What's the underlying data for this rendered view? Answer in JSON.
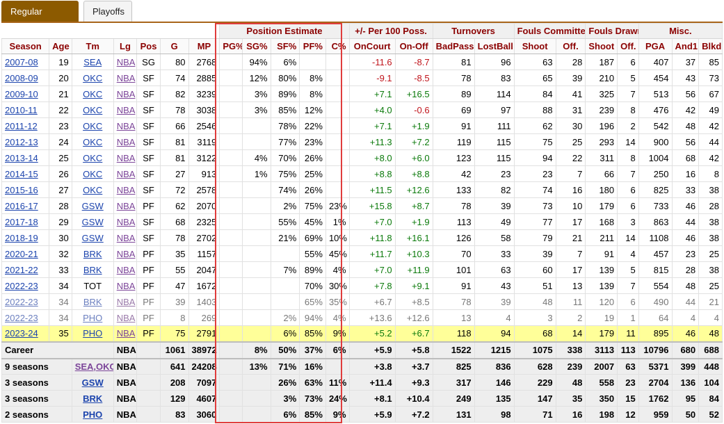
{
  "tabs": {
    "regular_season": "Regular Season",
    "playoffs": "Playoffs"
  },
  "groups": {
    "position_estimate": "Position Estimate",
    "plus_minus": "+/- Per 100 Poss.",
    "turnovers": "Turnovers",
    "fouls_committed": "Fouls Committed",
    "fouls_drawn": "Fouls Drawn",
    "misc": "Misc."
  },
  "columns": [
    "Season",
    "Age",
    "Tm",
    "Lg",
    "Pos",
    "G",
    "MP",
    "PG%",
    "SG%",
    "SF%",
    "PF%",
    "C%",
    "OnCourt",
    "On-Off",
    "BadPass",
    "LostBall",
    "Shoot",
    "Off.",
    "Shoot",
    "Off.",
    "PGA",
    "And1",
    "Blkd"
  ],
  "rows": [
    {
      "cells": [
        "2007-08",
        "19",
        "SEA",
        "NBA",
        "SG",
        "80",
        "2768",
        "",
        "94%",
        "6%",
        "",
        "",
        "-11.6",
        "-8.7",
        "81",
        "96",
        "63",
        "28",
        "187",
        "6",
        "407",
        "37",
        "85"
      ]
    },
    {
      "cells": [
        "2008-09",
        "20",
        "OKC",
        "NBA",
        "SF",
        "74",
        "2885",
        "",
        "12%",
        "80%",
        "8%",
        "",
        "-9.1",
        "-8.5",
        "78",
        "83",
        "65",
        "39",
        "210",
        "5",
        "454",
        "43",
        "73"
      ]
    },
    {
      "cells": [
        "2009-10",
        "21",
        "OKC",
        "NBA",
        "SF",
        "82",
        "3239",
        "",
        "3%",
        "89%",
        "8%",
        "",
        "+7.1",
        "+16.5",
        "89",
        "114",
        "84",
        "41",
        "325",
        "7",
        "513",
        "56",
        "67"
      ]
    },
    {
      "cells": [
        "2010-11",
        "22",
        "OKC",
        "NBA",
        "SF",
        "78",
        "3038",
        "",
        "3%",
        "85%",
        "12%",
        "",
        "+4.0",
        "-0.6",
        "69",
        "97",
        "88",
        "31",
        "239",
        "8",
        "476",
        "42",
        "49"
      ]
    },
    {
      "cells": [
        "2011-12",
        "23",
        "OKC",
        "NBA",
        "SF",
        "66",
        "2546",
        "",
        "",
        "78%",
        "22%",
        "",
        "+7.1",
        "+1.9",
        "91",
        "111",
        "62",
        "30",
        "196",
        "2",
        "542",
        "48",
        "42"
      ]
    },
    {
      "cells": [
        "2012-13",
        "24",
        "OKC",
        "NBA",
        "SF",
        "81",
        "3119",
        "",
        "",
        "77%",
        "23%",
        "",
        "+11.3",
        "+7.2",
        "119",
        "115",
        "75",
        "25",
        "293",
        "14",
        "900",
        "56",
        "44"
      ]
    },
    {
      "cells": [
        "2013-14",
        "25",
        "OKC",
        "NBA",
        "SF",
        "81",
        "3122",
        "",
        "4%",
        "70%",
        "26%",
        "",
        "+8.0",
        "+6.0",
        "123",
        "115",
        "94",
        "22",
        "311",
        "8",
        "1004",
        "68",
        "42"
      ]
    },
    {
      "cells": [
        "2014-15",
        "26",
        "OKC",
        "NBA",
        "SF",
        "27",
        "913",
        "",
        "1%",
        "75%",
        "25%",
        "",
        "+8.8",
        "+8.8",
        "42",
        "23",
        "23",
        "7",
        "66",
        "7",
        "250",
        "16",
        "8"
      ]
    },
    {
      "cells": [
        "2015-16",
        "27",
        "OKC",
        "NBA",
        "SF",
        "72",
        "2578",
        "",
        "",
        "74%",
        "26%",
        "",
        "+11.5",
        "+12.6",
        "133",
        "82",
        "74",
        "16",
        "180",
        "6",
        "825",
        "33",
        "38"
      ]
    },
    {
      "cells": [
        "2016-17",
        "28",
        "GSW",
        "NBA",
        "PF",
        "62",
        "2070",
        "",
        "",
        "2%",
        "75%",
        "23%",
        "+15.8",
        "+8.7",
        "78",
        "39",
        "73",
        "10",
        "179",
        "6",
        "733",
        "46",
        "28"
      ]
    },
    {
      "cells": [
        "2017-18",
        "29",
        "GSW",
        "NBA",
        "SF",
        "68",
        "2325",
        "",
        "",
        "55%",
        "45%",
        "1%",
        "+7.0",
        "+1.9",
        "113",
        "49",
        "77",
        "17",
        "168",
        "3",
        "863",
        "44",
        "38"
      ]
    },
    {
      "cells": [
        "2018-19",
        "30",
        "GSW",
        "NBA",
        "SF",
        "78",
        "2702",
        "",
        "",
        "21%",
        "69%",
        "10%",
        "+11.8",
        "+16.1",
        "126",
        "58",
        "79",
        "21",
        "211",
        "14",
        "1108",
        "46",
        "38"
      ]
    },
    {
      "cells": [
        "2020-21",
        "32",
        "BRK",
        "NBA",
        "PF",
        "35",
        "1157",
        "",
        "",
        "",
        "55%",
        "45%",
        "+11.7",
        "+10.3",
        "70",
        "33",
        "39",
        "7",
        "91",
        "4",
        "457",
        "23",
        "25"
      ]
    },
    {
      "cells": [
        "2021-22",
        "33",
        "BRK",
        "NBA",
        "PF",
        "55",
        "2047",
        "",
        "",
        "7%",
        "89%",
        "4%",
        "+7.0",
        "+11.9",
        "101",
        "63",
        "60",
        "17",
        "139",
        "5",
        "815",
        "28",
        "38"
      ]
    },
    {
      "cells": [
        "2022-23",
        "34",
        "TOT",
        "NBA",
        "PF",
        "47",
        "1672",
        "",
        "",
        "",
        "70%",
        "30%",
        "+7.8",
        "+9.1",
        "91",
        "43",
        "51",
        "13",
        "139",
        "7",
        "554",
        "48",
        "25"
      ]
    },
    {
      "cells": [
        "2022-23",
        "34",
        "BRK",
        "NBA",
        "PF",
        "39",
        "1403",
        "",
        "",
        "",
        "65%",
        "35%",
        "+6.7",
        "+8.5",
        "78",
        "39",
        "48",
        "11",
        "120",
        "6",
        "490",
        "44",
        "21"
      ],
      "partial": true
    },
    {
      "cells": [
        "2022-23",
        "34",
        "PHO",
        "NBA",
        "PF",
        "8",
        "269",
        "",
        "",
        "2%",
        "94%",
        "4%",
        "+13.6",
        "+12.6",
        "13",
        "4",
        "3",
        "2",
        "19",
        "1",
        "64",
        "4",
        "4"
      ],
      "partial": true
    },
    {
      "cells": [
        "2023-24",
        "35",
        "PHO",
        "NBA",
        "PF",
        "75",
        "2791",
        "",
        "",
        "6%",
        "85%",
        "9%",
        "+5.2",
        "+6.7",
        "118",
        "94",
        "68",
        "14",
        "179",
        "11",
        "895",
        "46",
        "48"
      ],
      "current": true
    }
  ],
  "career": {
    "label": "Career",
    "lg": "NBA",
    "cells": [
      "1061",
      "38972",
      "",
      "8%",
      "50%",
      "37%",
      "6%",
      "+5.9",
      "+5.8",
      "1522",
      "1215",
      "1075",
      "338",
      "3113",
      "113",
      "10796",
      "680",
      "688"
    ]
  },
  "team_totals": [
    {
      "label": "9 seasons",
      "team": "SEA,OKC",
      "lg": "NBA",
      "cells": [
        "641",
        "24208",
        "",
        "13%",
        "71%",
        "16%",
        "",
        "+3.8",
        "+3.7",
        "825",
        "836",
        "628",
        "239",
        "2007",
        "63",
        "5371",
        "399",
        "448"
      ]
    },
    {
      "label": "3 seasons",
      "team": "GSW",
      "lg": "NBA",
      "cells": [
        "208",
        "7097",
        "",
        "",
        "26%",
        "63%",
        "11%",
        "+11.4",
        "+9.3",
        "317",
        "146",
        "229",
        "48",
        "558",
        "23",
        "2704",
        "136",
        "104"
      ]
    },
    {
      "label": "3 seasons",
      "team": "BRK",
      "lg": "NBA",
      "cells": [
        "129",
        "4607",
        "",
        "",
        "3%",
        "73%",
        "24%",
        "+8.1",
        "+10.4",
        "249",
        "135",
        "147",
        "35",
        "350",
        "15",
        "1762",
        "95",
        "84"
      ]
    },
    {
      "label": "2 seasons",
      "team": "PHO",
      "lg": "NBA",
      "cells": [
        "83",
        "3060",
        "",
        "",
        "6%",
        "85%",
        "9%",
        "+5.9",
        "+7.2",
        "131",
        "98",
        "71",
        "16",
        "198",
        "12",
        "959",
        "50",
        "52"
      ]
    }
  ],
  "colors": {
    "tab_active": "#8c5a00",
    "header_text": "#8b0000",
    "link": "#1c44ad",
    "positive": "#0b7a0b",
    "negative": "#c0141b",
    "highlight_row": "#ffff99",
    "highlight_box": "#e03c3c"
  }
}
